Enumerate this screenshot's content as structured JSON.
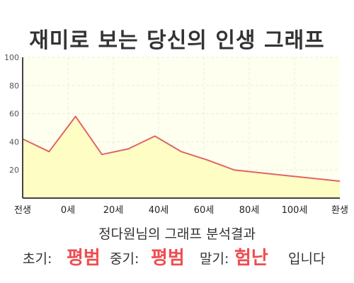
{
  "title": "재미로 보는 당신의 인생 그래프",
  "chart_data": {
    "type": "area",
    "x_labels": [
      "전생",
      "0세",
      "20세",
      "40세",
      "60세",
      "80세",
      "100세",
      "환생"
    ],
    "y_ticks": [
      20,
      40,
      60,
      80,
      100
    ],
    "ylim": [
      0,
      100
    ],
    "series": [
      {
        "values": [
          42,
          33,
          58,
          31,
          35,
          44,
          33,
          27,
          20,
          18,
          16,
          14,
          12
        ]
      }
    ],
    "grid": true,
    "legend": "none",
    "colors": {
      "line": "#e06466",
      "fill": "#fdfdc4",
      "plot_bg": "#fffff0",
      "grid": "#ececd8"
    }
  },
  "analysis_title": "정다원님의 그래프 분석결과",
  "result": {
    "early_label": "초기:",
    "early_value": "평범",
    "middle_label": "중기:",
    "middle_value": "평범",
    "late_label": "말기:",
    "late_value": "험난",
    "suffix": "입니다"
  }
}
